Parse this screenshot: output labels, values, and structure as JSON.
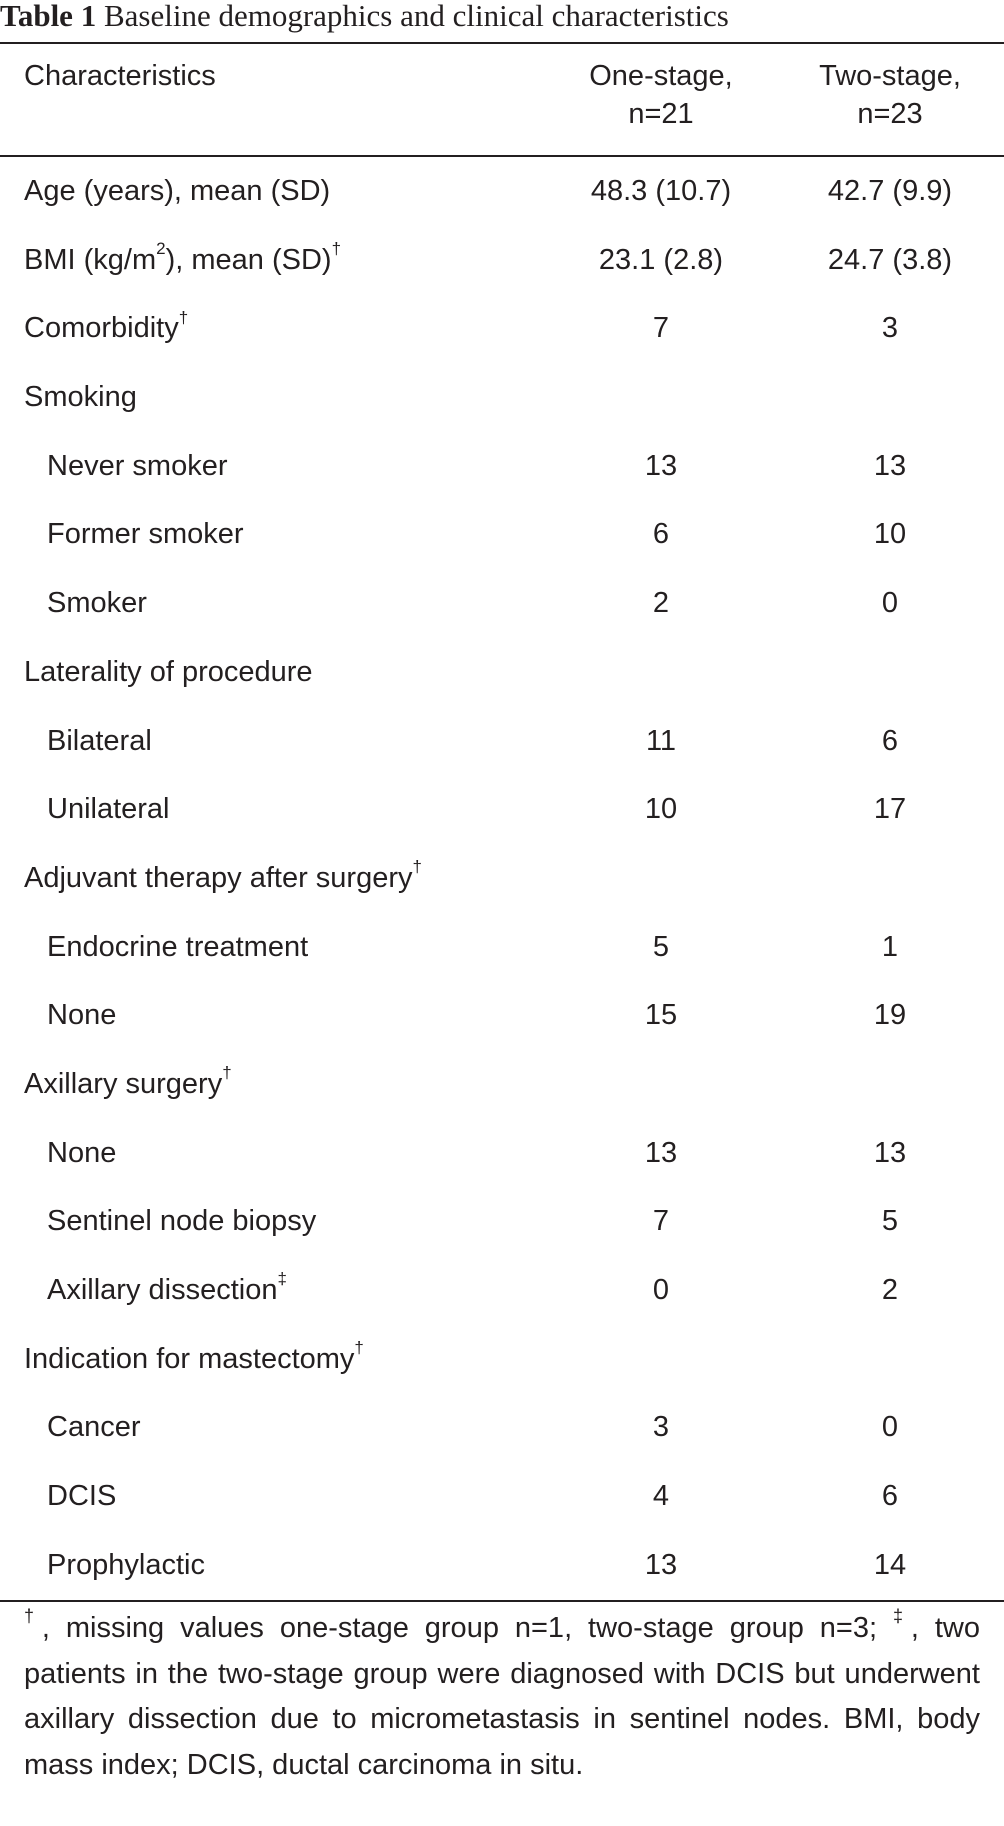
{
  "caption": {
    "label": "Table 1",
    "title": "Baseline demographics and clinical characteristics"
  },
  "header": {
    "characteristics": "Characteristics",
    "col1_line1": "One-stage,",
    "col1_line2": "n=21",
    "col2_line1": "Two-stage,",
    "col2_line2": "n=23"
  },
  "rows": [
    {
      "label": "Age (years), mean (SD)",
      "sup": "",
      "one": "48.3 (10.7)",
      "two": "42.7 (9.9)",
      "sub": false
    },
    {
      "label_pre": "BMI (kg/m",
      "label_sq": "2",
      "label_post": "), mean (SD)",
      "sup": "†",
      "one": "23.1 (2.8)",
      "two": "24.7 (3.8)",
      "sub": false
    },
    {
      "label": "Comorbidity",
      "sup": "†",
      "one": "7",
      "two": "3",
      "sub": false
    },
    {
      "label": "Smoking",
      "sup": "",
      "one": "",
      "two": "",
      "sub": false
    },
    {
      "label": "Never smoker",
      "sup": "",
      "one": "13",
      "two": "13",
      "sub": true
    },
    {
      "label": "Former smoker",
      "sup": "",
      "one": "6",
      "two": "10",
      "sub": true
    },
    {
      "label": "Smoker",
      "sup": "",
      "one": "2",
      "two": "0",
      "sub": true
    },
    {
      "label": "Laterality of procedure",
      "sup": "",
      "one": "",
      "two": "",
      "sub": false
    },
    {
      "label": "Bilateral",
      "sup": "",
      "one": "11",
      "two": "6",
      "sub": true
    },
    {
      "label": "Unilateral",
      "sup": "",
      "one": "10",
      "two": "17",
      "sub": true
    },
    {
      "label": "Adjuvant therapy after surgery",
      "sup": "†",
      "one": "",
      "two": "",
      "sub": false
    },
    {
      "label": "Endocrine treatment",
      "sup": "",
      "one": "5",
      "two": "1",
      "sub": true
    },
    {
      "label": "None",
      "sup": "",
      "one": "15",
      "two": "19",
      "sub": true
    },
    {
      "label": "Axillary surgery",
      "sup": "†",
      "one": "",
      "two": "",
      "sub": false
    },
    {
      "label": "None",
      "sup": "",
      "one": "13",
      "two": "13",
      "sub": true
    },
    {
      "label": "Sentinel node biopsy",
      "sup": "",
      "one": "7",
      "two": "5",
      "sub": true
    },
    {
      "label": "Axillary dissection",
      "sup": "‡",
      "one": "0",
      "two": "2",
      "sub": true
    },
    {
      "label": "Indication for mastectomy",
      "sup": "†",
      "one": "",
      "two": "",
      "sub": false
    },
    {
      "label": "Cancer",
      "sup": "",
      "one": "3",
      "two": "0",
      "sub": true
    },
    {
      "label": "DCIS",
      "sup": "",
      "one": "4",
      "two": "6",
      "sub": true
    },
    {
      "label": "Prophylactic",
      "sup": "",
      "one": "13",
      "two": "14",
      "sub": true
    }
  ],
  "footnote": {
    "mark1": "†",
    "text1": ", missing values one-stage group n=1, two-stage group n=3; ",
    "mark2": "‡",
    "text2": ", two patients in the two-stage group were diagnosed with DCIS but underwent axillary dissection due to micrometastasis in sentinel nodes. BMI, body mass index; DCIS, ductal carcinoma in situ."
  }
}
